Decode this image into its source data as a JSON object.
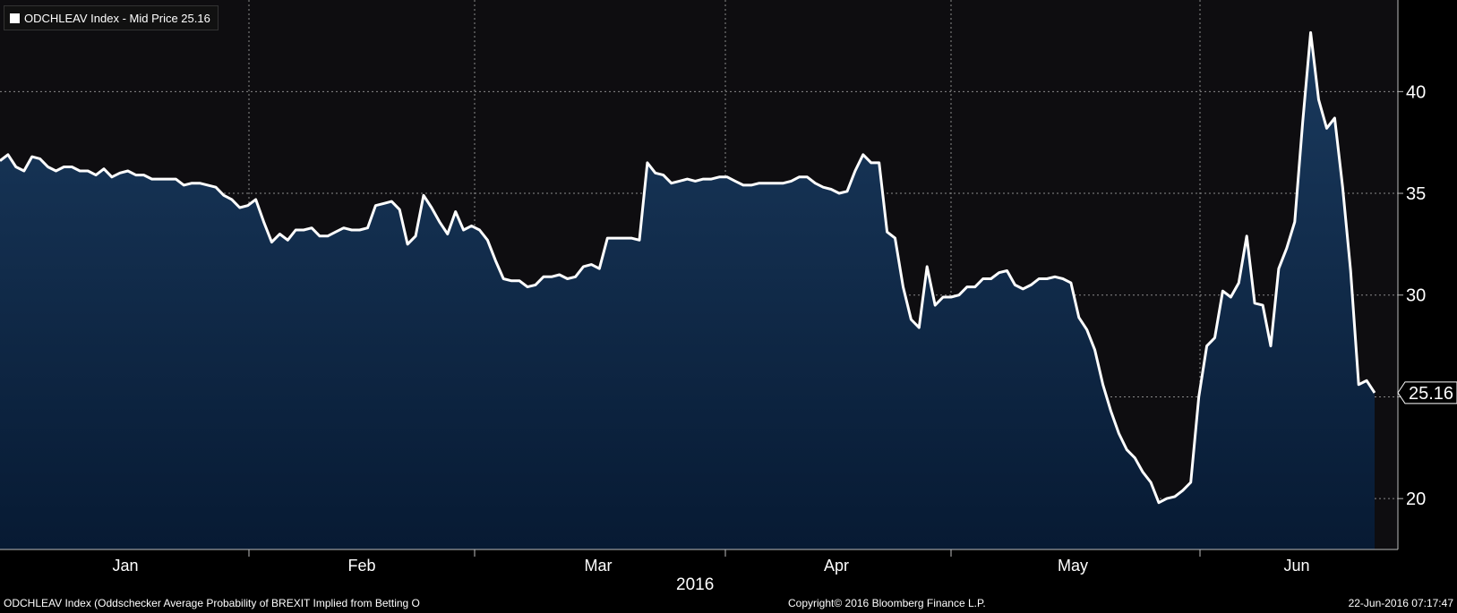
{
  "legend": {
    "label": "ODCHLEAV Index - Mid Price 25.16"
  },
  "footer": {
    "left": "ODCHLEAV Index (Oddschecker Average Probability of BREXIT Implied from Betting O",
    "center": "Copyright© 2016 Bloomberg Finance L.P.",
    "right": "22-Jun-2016 07:17:47"
  },
  "colors": {
    "line": "#ffffff",
    "fill_top": "#1a3a5e",
    "fill_bottom": "#071a33",
    "plot_bg": "#0e0d10",
    "grid": "#8a8a8a"
  },
  "chart_data": {
    "type": "area",
    "title": "ODCHLEAV Index - Mid Price 25.16",
    "year_label": "2016",
    "x_labels": [
      "Jan",
      "Feb",
      "Mar",
      "Apr",
      "May",
      "Jun"
    ],
    "y_ticks": [
      20,
      25,
      30,
      35,
      40
    ],
    "ylim": [
      17.5,
      44.5
    ],
    "last_value_label": "25.16",
    "grid": true,
    "series": [
      {
        "values": [
          36.6,
          36.9,
          36.3,
          36.1,
          36.8,
          36.7,
          36.3,
          36.1,
          36.3,
          36.3,
          36.1,
          36.1,
          35.9,
          36.2,
          35.8,
          36.0,
          36.1,
          35.9,
          35.9,
          35.7,
          35.7,
          35.7,
          35.7,
          35.4,
          35.5,
          35.5,
          35.4,
          35.3,
          34.9,
          34.7,
          34.3,
          34.4,
          34.7,
          33.6,
          32.6,
          33.0,
          32.7,
          33.2,
          33.2,
          33.3,
          32.9,
          32.9,
          33.1,
          33.3,
          33.2,
          33.2,
          33.3,
          34.4,
          34.5,
          34.6,
          34.2,
          32.5,
          32.9,
          34.9,
          34.3,
          33.6,
          33.0,
          34.1,
          33.2,
          33.4,
          33.2,
          32.7,
          31.7,
          30.8,
          30.7,
          30.7,
          30.4,
          30.5,
          30.9,
          30.9,
          31.0,
          30.8,
          30.9,
          31.4,
          31.5,
          31.3,
          32.8,
          32.8,
          32.8,
          32.8,
          32.7,
          36.5,
          36.0,
          35.9,
          35.5,
          35.6,
          35.7,
          35.6,
          35.7,
          35.7,
          35.8,
          35.8,
          35.6,
          35.4,
          35.4,
          35.5,
          35.5,
          35.5,
          35.5,
          35.6,
          35.8,
          35.8,
          35.5,
          35.3,
          35.2,
          35.0,
          35.1,
          36.1,
          36.9,
          36.5,
          36.5,
          33.1,
          32.8,
          30.4,
          28.8,
          28.4,
          31.4,
          29.5,
          29.9,
          29.9,
          30.0,
          30.4,
          30.4,
          30.8,
          30.8,
          31.1,
          31.2,
          30.5,
          30.3,
          30.5,
          30.8,
          30.8,
          30.9,
          30.8,
          30.6,
          28.9,
          28.3,
          27.3,
          25.6,
          24.3,
          23.2,
          22.4,
          22.0,
          21.3,
          20.8,
          19.8,
          20.0,
          20.1,
          20.4,
          20.8,
          25.0,
          27.5,
          27.9,
          30.2,
          29.9,
          30.6,
          32.9,
          29.6,
          29.5,
          27.5,
          31.3,
          32.3,
          33.6,
          38.5,
          42.9,
          39.6,
          38.2,
          38.7,
          35.3,
          31.2,
          25.6,
          25.8,
          25.2
        ]
      }
    ]
  }
}
